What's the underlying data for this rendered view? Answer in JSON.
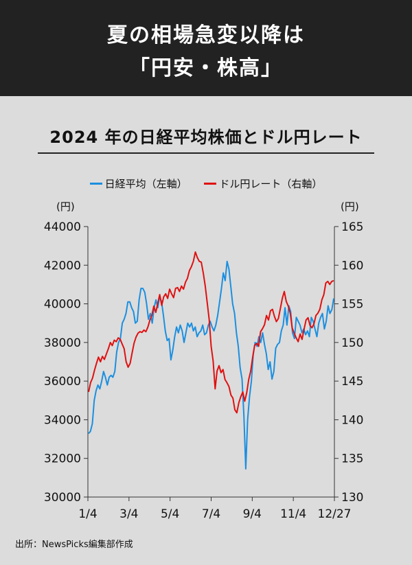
{
  "header": {
    "title_line1": "夏の相場急変以降は",
    "title_line2": "「円安・株高」"
  },
  "chart_data": {
    "type": "line",
    "title": "2024 年の日経平均株価とドル円レート",
    "x_ticks": [
      "1/4",
      "3/4",
      "5/4",
      "7/4",
      "9/4",
      "11/4",
      "12/27"
    ],
    "left_axis": {
      "unit": "(円)",
      "ylim": [
        30000,
        44000
      ],
      "ticks": [
        "44000",
        "42000",
        "40000",
        "38000",
        "36000",
        "34000",
        "32000",
        "30000"
      ]
    },
    "right_axis": {
      "unit": "(円)",
      "ylim": [
        130,
        165
      ],
      "ticks": [
        "165",
        "160",
        "155",
        "150",
        "145",
        "140",
        "135",
        "130"
      ]
    },
    "series": [
      {
        "name": "日経平均（左軸）",
        "axis": "left",
        "color": "#1b8fe0",
        "values": [
          33288,
          33400,
          33800,
          35000,
          35500,
          35800,
          35600,
          36000,
          36500,
          36200,
          35800,
          36200,
          36300,
          36200,
          36500,
          37500,
          38000,
          38200,
          39000,
          39200,
          39500,
          40100,
          40100,
          39800,
          39600,
          39000,
          39100,
          40200,
          40800,
          40800,
          40600,
          40000,
          39200,
          39500,
          39000,
          39800,
          40200,
          39800,
          40400,
          40100,
          39400,
          38600,
          38100,
          38200,
          37100,
          37600,
          38300,
          38800,
          38500,
          38900,
          38600,
          38000,
          38500,
          39000,
          38800,
          39000,
          38600,
          38800,
          38300,
          38500,
          38600,
          38900,
          38400,
          38500,
          38900,
          39100,
          38800,
          38600,
          38900,
          39400,
          40100,
          40800,
          41600,
          41200,
          42200,
          41800,
          40900,
          40000,
          39500,
          38500,
          37800,
          36700,
          36100,
          34200,
          31458,
          34000,
          35200,
          36000,
          37400,
          38000,
          37800,
          38300,
          38000,
          38500,
          37900,
          37400,
          36600,
          37000,
          36100,
          36500,
          37700,
          37900,
          38000,
          38600,
          38900,
          39800,
          38900,
          39900,
          39600,
          38500,
          38200,
          39300,
          39100,
          38900,
          38500,
          38700,
          38400,
          38600,
          38300,
          39300,
          39100,
          38700,
          38300,
          39000,
          39300,
          39500,
          38700,
          39100,
          39900,
          39500,
          39700,
          40281
        ]
      },
      {
        "name": "ドル円レート（右軸）",
        "axis": "right",
        "color": "#e01010",
        "values": [
          143.6,
          144.8,
          145.4,
          146.4,
          147.3,
          148.1,
          147.5,
          148.2,
          147.8,
          148.5,
          149.2,
          150.0,
          149.6,
          150.3,
          150.1,
          150.6,
          150.4,
          149.8,
          149.2,
          147.5,
          146.8,
          147.3,
          148.6,
          149.9,
          150.7,
          151.2,
          151.4,
          151.3,
          151.6,
          151.4,
          152.0,
          152.9,
          153.5,
          154.7,
          153.9,
          155.1,
          156.2,
          154.8,
          155.9,
          156.3,
          155.7,
          156.9,
          156.3,
          155.8,
          157.0,
          157.1,
          156.6,
          157.3,
          156.9,
          157.8,
          158.3,
          159.3,
          159.8,
          160.5,
          161.7,
          161.0,
          160.5,
          160.4,
          159.0,
          157.3,
          155.2,
          153.0,
          149.5,
          147.6,
          144.0,
          146.3,
          147.0,
          146.1,
          146.5,
          145.2,
          144.8,
          144.3,
          143.2,
          142.8,
          141.3,
          140.9,
          142.2,
          143.0,
          143.6,
          142.4,
          143.5,
          145.2,
          146.3,
          148.1,
          149.6,
          149.9,
          149.5,
          151.4,
          151.8,
          152.3,
          153.5,
          152.9,
          154.1,
          154.3,
          153.4,
          152.7,
          153.1,
          154.4,
          155.7,
          156.6,
          155.3,
          154.7,
          153.8,
          151.9,
          151.2,
          150.6,
          150.1,
          151.1,
          150.4,
          151.7,
          152.9,
          153.2,
          152.2,
          151.9,
          152.4,
          153.5,
          153.8,
          154.3,
          155.5,
          156.2,
          157.7,
          157.9,
          157.5,
          157.9,
          158.0
        ]
      }
    ],
    "legend_position": "top",
    "grid": false
  },
  "source": "出所：NewsPicks編集部作成"
}
